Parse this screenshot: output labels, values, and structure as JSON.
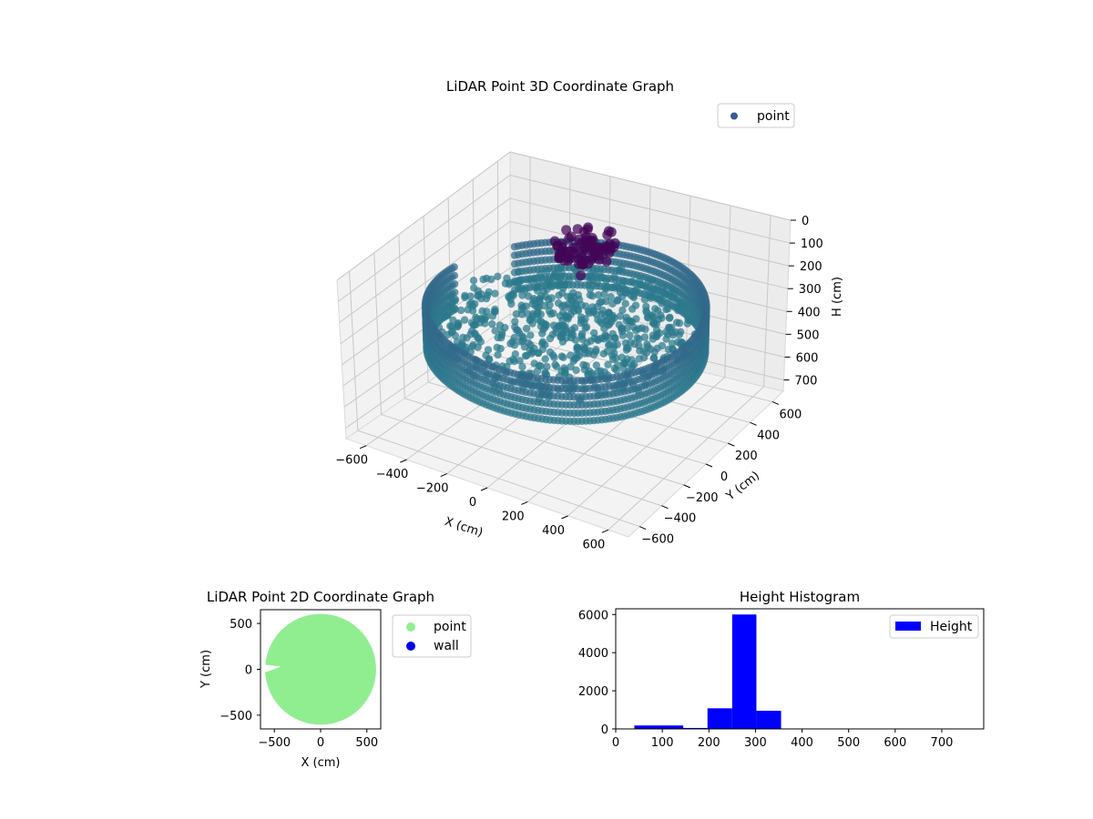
{
  "chart_data": [
    {
      "type": "scatter",
      "projection": "3d",
      "title": "LiDAR Point 3D Coordinate Graph",
      "xlabel": "X (cm)",
      "ylabel": "Y (cm)",
      "zlabel": "H (cm)",
      "xlim": [
        -700,
        700
      ],
      "ylim": [
        -700,
        700
      ],
      "zlim": [
        750,
        0
      ],
      "xticks": [
        -600,
        -400,
        -200,
        0,
        200,
        400,
        600
      ],
      "yticks": [
        -600,
        -400,
        -200,
        0,
        200,
        400,
        600
      ],
      "zticks": [
        0,
        100,
        200,
        300,
        400,
        500,
        600,
        700
      ],
      "grid": true,
      "legend": {
        "position": "top-right",
        "entries": [
          "point"
        ]
      },
      "series": [
        {
          "name": "point",
          "color": "#3b5b92",
          "colormap": "viridis",
          "description_of_shape": "ring"
        }
      ],
      "ring": {
        "radius_cm": 600,
        "height_cm_range": [
          230,
          420
        ]
      },
      "cluster": {
        "x": -150,
        "y": 400,
        "h_cm_range": [
          100,
          250
        ]
      }
    },
    {
      "type": "scatter",
      "title": "LiDAR Point 2D Coordinate Graph",
      "xlabel": "X (cm)",
      "ylabel": "Y (cm)",
      "xlim": [
        -650,
        650
      ],
      "ylim": [
        -650,
        650
      ],
      "xticks": [
        -500,
        0,
        500
      ],
      "yticks": [
        -500,
        0,
        500
      ],
      "legend": {
        "position": "outside-right",
        "entries": [
          "point",
          "wall"
        ]
      },
      "series": [
        {
          "name": "point",
          "color": "#90ee90",
          "shape": "disk",
          "radius": 600
        },
        {
          "name": "wall",
          "color": "#0000ee",
          "values": []
        }
      ]
    },
    {
      "type": "bar",
      "title": "Height Histogram",
      "xlabel": "",
      "ylabel": "",
      "xlim": [
        0,
        790
      ],
      "ylim": [
        0,
        6300
      ],
      "xticks": [
        0,
        100,
        200,
        300,
        400,
        500,
        600,
        700
      ],
      "yticks": [
        0,
        2000,
        4000,
        6000
      ],
      "legend": {
        "position": "top-right",
        "entries": [
          "Height"
        ]
      },
      "color": "#0000ff",
      "bins": [
        {
          "start": 40,
          "end": 145,
          "count": 180
        },
        {
          "start": 145,
          "end": 197,
          "count": 50
        },
        {
          "start": 197,
          "end": 250,
          "count": 1080
        },
        {
          "start": 250,
          "end": 302,
          "count": 6000
        },
        {
          "start": 302,
          "end": 355,
          "count": 950
        },
        {
          "start": 355,
          "end": 780,
          "count": 0
        }
      ],
      "series": [
        {
          "name": "Height"
        }
      ]
    }
  ]
}
